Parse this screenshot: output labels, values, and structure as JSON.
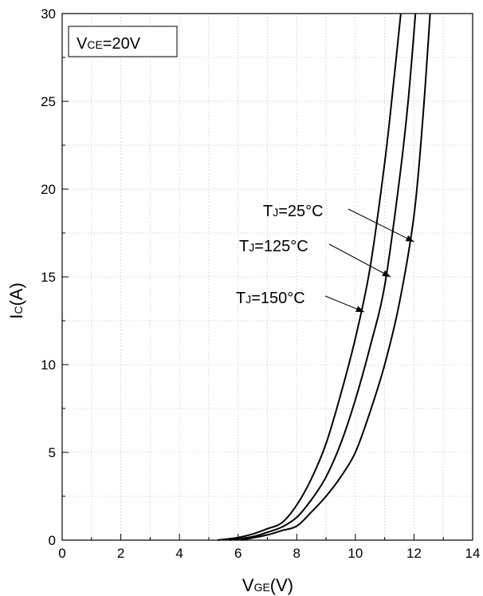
{
  "chart_data": {
    "type": "line",
    "title": "",
    "xlabel": {
      "main": "V",
      "sub": "GE",
      "unit": "(V)"
    },
    "ylabel": {
      "main": "I",
      "sub": "C",
      "unit": "(A)"
    },
    "xlim": [
      0,
      14
    ],
    "ylim": [
      0,
      30
    ],
    "x_ticks": [
      "0",
      "2",
      "4",
      "6",
      "8",
      "10",
      "12",
      "14"
    ],
    "y_ticks": [
      "0",
      "5",
      "10",
      "15",
      "20",
      "25",
      "30"
    ],
    "grid": true,
    "condition_box": {
      "main": "V",
      "sub": "CE",
      "rest": "=20V"
    },
    "series": [
      {
        "name": "T_J=150°C",
        "label_parts": {
          "main": "T",
          "sub": "J",
          "rest": "=150°C"
        },
        "x": [
          5.3,
          6.0,
          6.5,
          7.0,
          7.5,
          8.0,
          8.5,
          9.0,
          9.5,
          10.0,
          10.5,
          11.0,
          11.3,
          11.55
        ],
        "y": [
          0,
          0.15,
          0.35,
          0.65,
          1.0,
          2.0,
          3.5,
          5.5,
          8.3,
          11.5,
          15.5,
          21.5,
          26.0,
          30.0
        ]
      },
      {
        "name": "T_J=125°C",
        "label_parts": {
          "main": "T",
          "sub": "J",
          "rest": "=125°C"
        },
        "x": [
          5.7,
          6.5,
          7.0,
          7.5,
          8.0,
          8.5,
          9.0,
          9.5,
          10.0,
          10.5,
          11.0,
          11.5,
          11.8,
          12.05
        ],
        "y": [
          0,
          0.2,
          0.45,
          0.75,
          1.3,
          2.3,
          3.6,
          5.5,
          8.0,
          11.0,
          14.5,
          20.5,
          25.0,
          30.0
        ]
      },
      {
        "name": "T_J=25°C",
        "label_parts": {
          "main": "T",
          "sub": "J",
          "rest": "=25°C"
        },
        "x": [
          6.1,
          7.0,
          7.5,
          8.0,
          8.5,
          9.0,
          9.5,
          10.0,
          10.5,
          11.0,
          11.5,
          12.0,
          12.3,
          12.55
        ],
        "y": [
          0,
          0.3,
          0.55,
          0.8,
          1.6,
          2.5,
          3.6,
          5.0,
          7.3,
          10.0,
          13.5,
          18.5,
          24.0,
          30.0
        ]
      }
    ],
    "annotations": [
      {
        "series": "T_J=25°C",
        "arrow_to": [
          12.0,
          17.0
        ]
      },
      {
        "series": "T_J=125°C",
        "arrow_to": [
          11.2,
          15.0
        ]
      },
      {
        "series": "T_J=150°C",
        "arrow_to": [
          10.3,
          13.0
        ]
      }
    ]
  }
}
